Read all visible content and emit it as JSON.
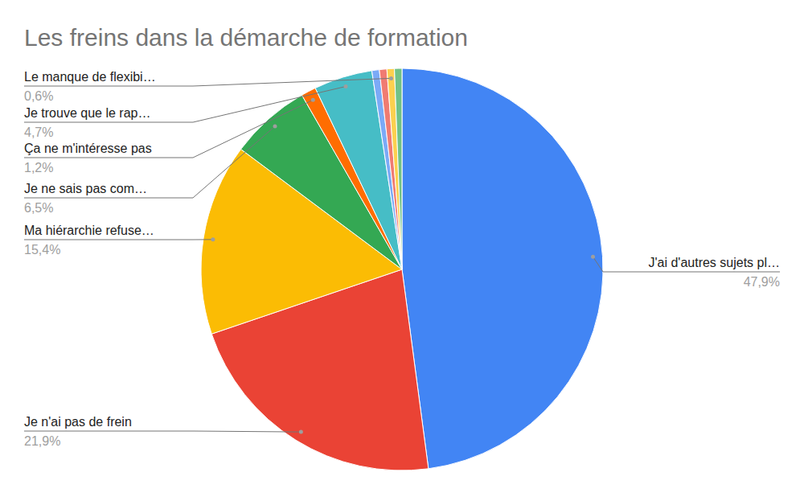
{
  "chart_data": {
    "type": "pie",
    "title": "Les freins dans la démarche de formation",
    "categories": [
      "J'ai d'autres sujets pl…",
      "Je n'ai pas de frein",
      "Ma hiérarchie refuse…",
      "Je ne sais pas com…",
      "Ça ne m'intéresse pas",
      "Je trouve que le rap…",
      null,
      null,
      "Le manque de flexibi…",
      null
    ],
    "values": [
      47.9,
      21.9,
      15.4,
      6.5,
      1.2,
      4.7,
      0.6,
      0.6,
      0.6,
      0.6
    ],
    "value_labels": [
      "47,9%",
      "21,9%",
      "15,4%",
      "6,5%",
      "1,2%",
      "4,7%",
      null,
      null,
      "0,6%",
      null
    ],
    "colors": [
      "#4285f4",
      "#ea4335",
      "#fbbc04",
      "#34a853",
      "#ff6d01",
      "#46bdc6",
      "#7baaf7",
      "#f07b72",
      "#fcd04f",
      "#71c287"
    ],
    "data_labels": true
  }
}
